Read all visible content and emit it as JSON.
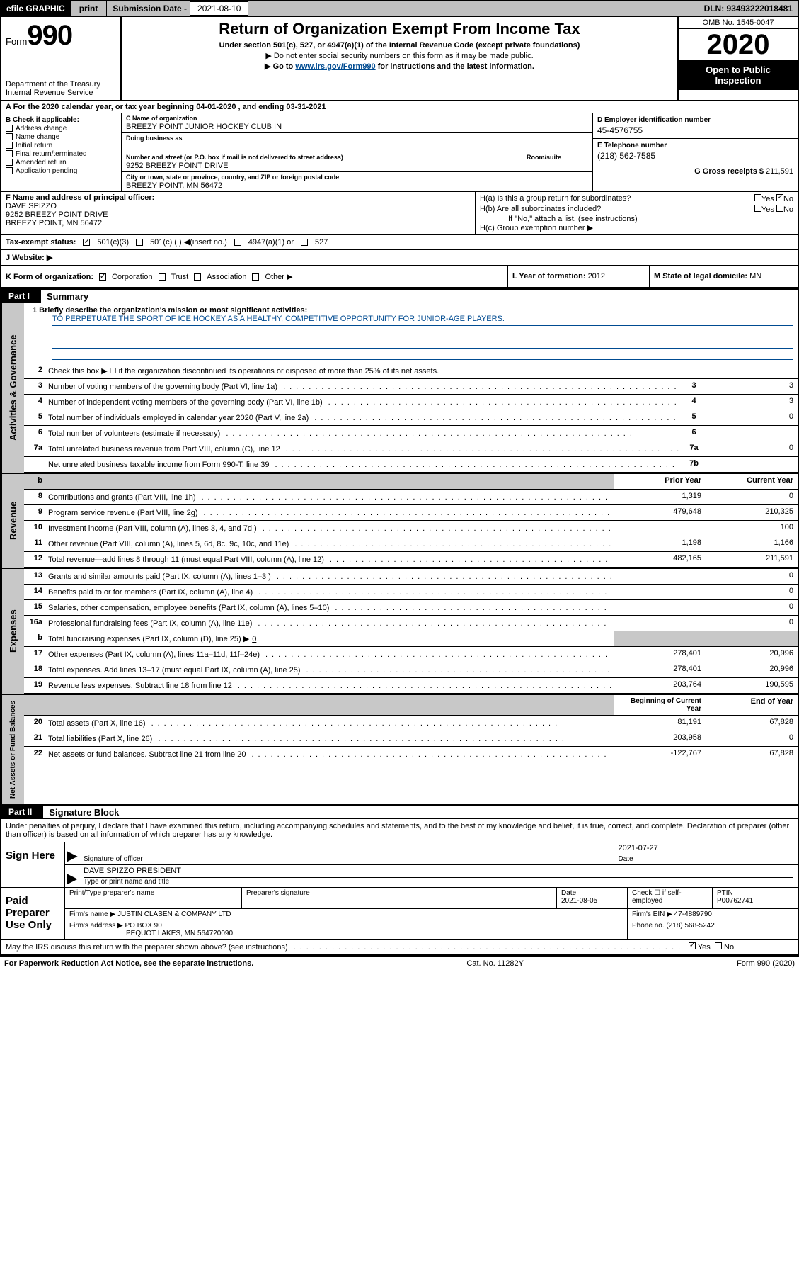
{
  "topbar": {
    "efile": "efile GRAPHIC",
    "print": "print",
    "sub_label": "Submission Date - ",
    "sub_date": "2021-08-10",
    "dln": "DLN: 93493222018481"
  },
  "header": {
    "form_word": "Form",
    "form_num": "990",
    "dept": "Department of the Treasury Internal Revenue Service",
    "title": "Return of Organization Exempt From Income Tax",
    "subtitle": "Under section 501(c), 527, or 4947(a)(1) of the Internal Revenue Code (except private foundations)",
    "note1": "▶ Do not enter social security numbers on this form as it may be made public.",
    "note2_pre": "▶ Go to ",
    "note2_link": "www.irs.gov/Form990",
    "note2_post": " for instructions and the latest information.",
    "omb": "OMB No. 1545-0047",
    "year": "2020",
    "open": "Open to Public Inspection"
  },
  "row_a": "A   For the 2020 calendar year, or tax year beginning 04-01-2020    , and ending 03-31-2021",
  "b": {
    "label": "B Check if applicable:",
    "items": [
      "Address change",
      "Name change",
      "Initial return",
      "Final return/terminated",
      "Amended return",
      "Application pending"
    ]
  },
  "c": {
    "name_lbl": "C Name of organization",
    "name": "BREEZY POINT JUNIOR HOCKEY CLUB IN",
    "dba_lbl": "Doing business as",
    "addr_lbl": "Number and street (or P.O. box if mail is not delivered to street address)",
    "addr": "9252 BREEZY POINT DRIVE",
    "room_lbl": "Room/suite",
    "city_lbl": "City or town, state or province, country, and ZIP or foreign postal code",
    "city": "BREEZY POINT, MN  56472"
  },
  "d": {
    "lbl": "D Employer identification number",
    "val": "45-4576755"
  },
  "e": {
    "lbl": "E Telephone number",
    "val": "(218) 562-7585"
  },
  "g": {
    "lbl": "G Gross receipts $ ",
    "val": "211,591"
  },
  "f": {
    "lbl": "F  Name and address of principal officer:",
    "name": "DAVE SPIZZO",
    "addr1": "9252 BREEZY POINT DRIVE",
    "addr2": "BREEZY POINT, MN  56472"
  },
  "h": {
    "a": "H(a)  Is this a group return for subordinates?",
    "b": "H(b)  Are all subordinates included?",
    "b_note": "If \"No,\" attach a list. (see instructions)",
    "c": "H(c)  Group exemption number ▶",
    "yes": "Yes",
    "no": "No"
  },
  "tax": {
    "lbl": "Tax-exempt status:",
    "o1": "501(c)(3)",
    "o2": "501(c) (  ) ◀(insert no.)",
    "o3": "4947(a)(1) or",
    "o4": "527"
  },
  "j": "J   Website: ▶",
  "k": "K Form of organization:",
  "k_opts": [
    "Corporation",
    "Trust",
    "Association",
    "Other ▶"
  ],
  "l": {
    "lbl": "L Year of formation: ",
    "val": "2012"
  },
  "m": {
    "lbl": "M State of legal domicile: ",
    "val": "MN"
  },
  "part1": {
    "tag": "Part I",
    "title": "Summary"
  },
  "part2": {
    "tag": "Part II",
    "title": "Signature Block"
  },
  "mission_lbl": "1   Briefly describe the organization's mission or most significant activities:",
  "mission": "TO PERPETUATE THE SPORT OF ICE HOCKEY AS A HEALTHY, COMPETITIVE OPPORTUNITY FOR JUNIOR-AGE PLAYERS.",
  "gov": {
    "l2": "Check this box ▶ ☐  if the organization discontinued its operations or disposed of more than 25% of its net assets.",
    "rows": [
      {
        "n": "3",
        "d": "Number of voting members of the governing body (Part VI, line 1a)",
        "c": "3",
        "v": "3"
      },
      {
        "n": "4",
        "d": "Number of independent voting members of the governing body (Part VI, line 1b)",
        "c": "4",
        "v": "3"
      },
      {
        "n": "5",
        "d": "Total number of individuals employed in calendar year 2020 (Part V, line 2a)",
        "c": "5",
        "v": "0"
      },
      {
        "n": "6",
        "d": "Total number of volunteers (estimate if necessary)",
        "c": "6",
        "v": ""
      },
      {
        "n": "7a",
        "d": "Total unrelated business revenue from Part VIII, column (C), line 12",
        "c": "7a",
        "v": "0"
      },
      {
        "n": "",
        "d": "Net unrelated business taxable income from Form 990-T, line 39",
        "c": "7b",
        "v": ""
      }
    ]
  },
  "rev_hdr": {
    "b": "b",
    "prior": "Prior Year",
    "curr": "Current Year"
  },
  "rev": [
    {
      "n": "8",
      "d": "Contributions and grants (Part VIII, line 1h)",
      "p": "1,319",
      "c": "0"
    },
    {
      "n": "9",
      "d": "Program service revenue (Part VIII, line 2g)",
      "p": "479,648",
      "c": "210,325"
    },
    {
      "n": "10",
      "d": "Investment income (Part VIII, column (A), lines 3, 4, and 7d )",
      "p": "",
      "c": "100"
    },
    {
      "n": "11",
      "d": "Other revenue (Part VIII, column (A), lines 5, 6d, 8c, 9c, 10c, and 11e)",
      "p": "1,198",
      "c": "1,166"
    },
    {
      "n": "12",
      "d": "Total revenue—add lines 8 through 11 (must equal Part VIII, column (A), line 12)",
      "p": "482,165",
      "c": "211,591"
    }
  ],
  "exp": [
    {
      "n": "13",
      "d": "Grants and similar amounts paid (Part IX, column (A), lines 1–3 )",
      "p": "",
      "c": "0"
    },
    {
      "n": "14",
      "d": "Benefits paid to or for members (Part IX, column (A), line 4)",
      "p": "",
      "c": "0"
    },
    {
      "n": "15",
      "d": "Salaries, other compensation, employee benefits (Part IX, column (A), lines 5–10)",
      "p": "",
      "c": "0"
    },
    {
      "n": "16a",
      "d": "Professional fundraising fees (Part IX, column (A), line 11e)",
      "p": "",
      "c": "0"
    }
  ],
  "exp_b": {
    "n": "b",
    "d": "Total fundraising expenses (Part IX, column (D), line 25) ▶",
    "v": "0"
  },
  "exp2": [
    {
      "n": "17",
      "d": "Other expenses (Part IX, column (A), lines 11a–11d, 11f–24e)",
      "p": "278,401",
      "c": "20,996"
    },
    {
      "n": "18",
      "d": "Total expenses. Add lines 13–17 (must equal Part IX, column (A), line 25)",
      "p": "278,401",
      "c": "20,996"
    },
    {
      "n": "19",
      "d": "Revenue less expenses. Subtract line 18 from line 12",
      "p": "203,764",
      "c": "190,595"
    }
  ],
  "na_hdr": {
    "prior": "Beginning of Current Year",
    "curr": "End of Year"
  },
  "na": [
    {
      "n": "20",
      "d": "Total assets (Part X, line 16)",
      "p": "81,191",
      "c": "67,828"
    },
    {
      "n": "21",
      "d": "Total liabilities (Part X, line 26)",
      "p": "203,958",
      "c": "0"
    },
    {
      "n": "22",
      "d": "Net assets or fund balances. Subtract line 21 from line 20",
      "p": "-122,767",
      "c": "67,828"
    }
  ],
  "side": {
    "gov": "Activities & Governance",
    "rev": "Revenue",
    "exp": "Expenses",
    "na": "Net Assets or Fund Balances"
  },
  "sig": {
    "penalty": "Under penalties of perjury, I declare that I have examined this return, including accompanying schedules and statements, and to the best of my knowledge and belief, it is true, correct, and complete. Declaration of preparer (other than officer) is based on all information of which preparer has any knowledge.",
    "sign_here": "Sign Here",
    "date1": "2021-07-27",
    "sig_lbl": "Signature of officer",
    "date_lbl": "Date",
    "name_lbl": "Type or print name and title",
    "name": "DAVE SPIZZO  PRESIDENT",
    "paid": "Paid Preparer Use Only",
    "pp_name_lbl": "Print/Type preparer's name",
    "pp_sig_lbl": "Preparer's signature",
    "pp_date_lbl": "Date",
    "pp_date": "2021-08-05",
    "pp_check": "Check ☐ if self-employed",
    "ptin_lbl": "PTIN",
    "ptin": "P00762741",
    "firm_name_lbl": "Firm's name   ▶",
    "firm_name": "JUSTIN CLASEN & COMPANY LTD",
    "firm_ein_lbl": "Firm's EIN ▶ ",
    "firm_ein": "47-4889790",
    "firm_addr_lbl": "Firm's address ▶",
    "firm_addr": "PO BOX 90",
    "firm_addr2": "PEQUOT LAKES, MN  564720090",
    "phone_lbl": "Phone no. ",
    "phone": "(218) 568-5242",
    "discuss": "May the IRS discuss this return with the preparer shown above? (see instructions)",
    "yes": "Yes",
    "no": "No"
  },
  "footer": {
    "left": "For Paperwork Reduction Act Notice, see the separate instructions.",
    "mid": "Cat. No. 11282Y",
    "right": "Form 990 (2020)"
  }
}
